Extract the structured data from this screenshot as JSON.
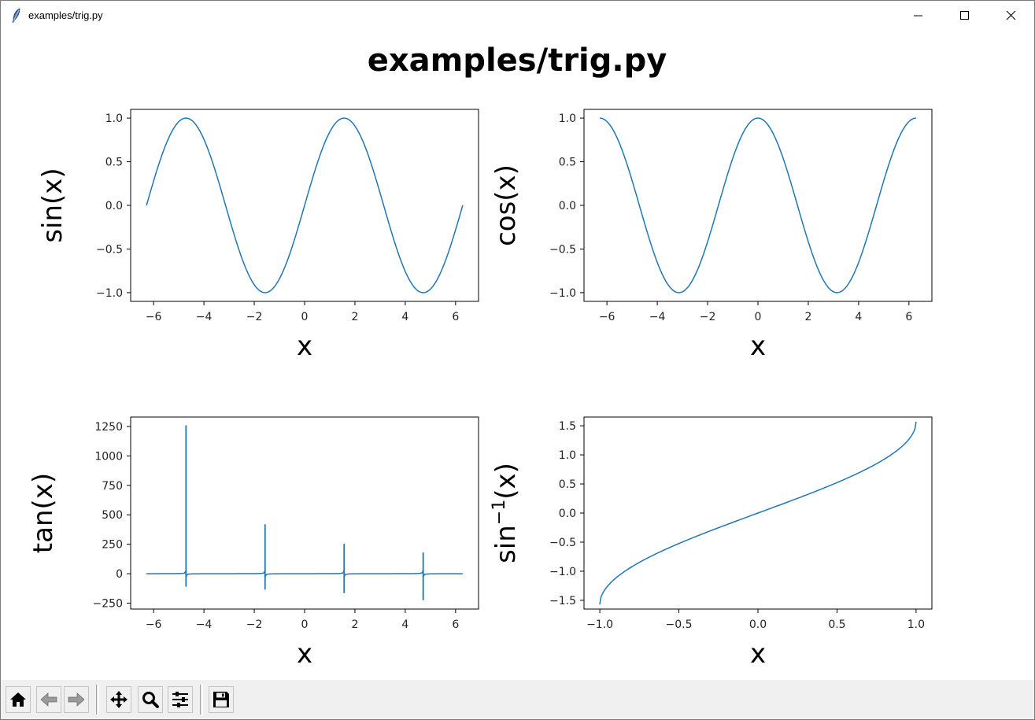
{
  "window": {
    "title": "examples/trig.py",
    "controls": [
      "minimize-icon",
      "maximize-icon",
      "close-icon"
    ]
  },
  "figure": {
    "suptitle": "examples/trig.py"
  },
  "chart_data": [
    {
      "type": "line",
      "function": "sin",
      "x_range": [
        -6.283,
        6.283
      ],
      "xlabel": "x",
      "ylabel": "sin(x)",
      "xlim": [
        -6.912,
        6.912
      ],
      "ylim": [
        -1.1,
        1.1
      ],
      "xticks": [
        -6,
        -4,
        -2,
        0,
        2,
        4,
        6
      ],
      "xtick_labels": [
        "−6",
        "−4",
        "−2",
        "0",
        "2",
        "4",
        "6"
      ],
      "yticks": [
        -1.0,
        -0.5,
        0.0,
        0.5,
        1.0
      ],
      "ytick_labels": [
        "−1.0",
        "−0.5",
        "0.0",
        "0.5",
        "1.0"
      ],
      "color": "#1f77b4",
      "grid": false
    },
    {
      "type": "line",
      "function": "cos",
      "x_range": [
        -6.283,
        6.283
      ],
      "xlabel": "x",
      "ylabel": "cos(x)",
      "xlim": [
        -6.912,
        6.912
      ],
      "ylim": [
        -1.1,
        1.1
      ],
      "xticks": [
        -6,
        -4,
        -2,
        0,
        2,
        4,
        6
      ],
      "xtick_labels": [
        "−6",
        "−4",
        "−2",
        "0",
        "2",
        "4",
        "6"
      ],
      "yticks": [
        -1.0,
        -0.5,
        0.0,
        0.5,
        1.0
      ],
      "ytick_labels": [
        "−1.0",
        "−0.5",
        "0.0",
        "0.5",
        "1.0"
      ],
      "color": "#1f77b4",
      "grid": false
    },
    {
      "type": "line",
      "function": "tan",
      "x_range": [
        -6.283,
        6.283
      ],
      "xlabel": "x",
      "ylabel": "tan(x)",
      "xlim": [
        -6.912,
        6.912
      ],
      "ylim": [
        -300,
        1330
      ],
      "xticks": [
        -6,
        -4,
        -2,
        0,
        2,
        4,
        6
      ],
      "xtick_labels": [
        "−6",
        "−4",
        "−2",
        "0",
        "2",
        "4",
        "6"
      ],
      "yticks": [
        -250,
        0,
        250,
        500,
        750,
        1000,
        1250
      ],
      "ytick_labels": [
        "−250",
        "0",
        "250",
        "500",
        "750",
        "1000",
        "1250"
      ],
      "spikes": [
        {
          "x": -4.712,
          "max": 1260,
          "min": -110
        },
        {
          "x": -1.571,
          "max": 420,
          "min": -135
        },
        {
          "x": 1.571,
          "max": 255,
          "min": -165
        },
        {
          "x": 4.712,
          "max": 180,
          "min": -225
        }
      ],
      "color": "#1f77b4",
      "grid": false
    },
    {
      "type": "line",
      "function": "arcsin",
      "x_range": [
        -1.0,
        1.0
      ],
      "xlabel": "x",
      "ylabel": "sin⁻¹(x)",
      "ylabel_base": "sin",
      "ylabel_sup": "−1",
      "ylabel_arg": "(x)",
      "xlim": [
        -1.1,
        1.1
      ],
      "ylim": [
        -1.65,
        1.65
      ],
      "xticks": [
        -1.0,
        -0.5,
        0.0,
        0.5,
        1.0
      ],
      "xtick_labels": [
        "−1.0",
        "−0.5",
        "0.0",
        "0.5",
        "1.0"
      ],
      "yticks": [
        -1.5,
        -1.0,
        -0.5,
        0.0,
        0.5,
        1.0,
        1.5
      ],
      "ytick_labels": [
        "−1.5",
        "−1.0",
        "−0.5",
        "0.0",
        "0.5",
        "1.0",
        "1.5"
      ],
      "color": "#1f77b4",
      "grid": false
    }
  ],
  "toolbar": {
    "buttons": [
      {
        "name": "home-button",
        "icon": "home-icon"
      },
      {
        "name": "back-button",
        "icon": "back-arrow-icon"
      },
      {
        "name": "forward-button",
        "icon": "forward-arrow-icon"
      },
      {
        "name": "pan-button",
        "icon": "move-arrows-icon"
      },
      {
        "name": "zoom-button",
        "icon": "magnifier-icon"
      },
      {
        "name": "configure-subplots-button",
        "icon": "sliders-icon"
      },
      {
        "name": "save-button",
        "icon": "floppy-disk-icon"
      }
    ]
  }
}
